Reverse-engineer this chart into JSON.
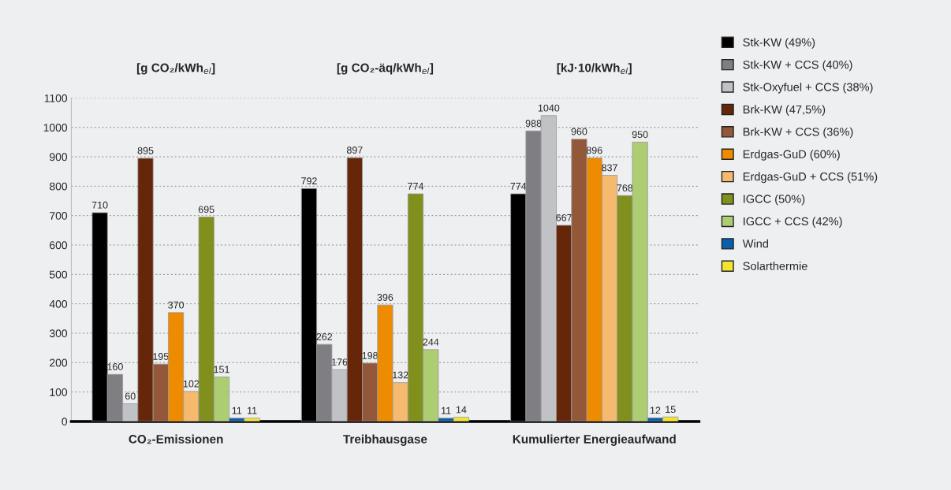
{
  "chart_data": {
    "type": "bar",
    "categories": [
      "CO₂-Emissionen",
      "Treibhausgase",
      "Kumulierter Energieaufwand"
    ],
    "series": [
      {
        "name": "Stk-KW (49%)",
        "color": "#000000",
        "values": [
          710,
          792,
          774
        ]
      },
      {
        "name": "Stk-KW + CCS (40%)",
        "color": "#7f7e83",
        "values": [
          160,
          262,
          988
        ]
      },
      {
        "name": "Stk-Oxyfuel + CCS (38%)",
        "color": "#c1c2c6",
        "values": [
          60,
          176,
          1040
        ]
      },
      {
        "name": "Brk-KW (47,5%)",
        "color": "#66260a",
        "values": [
          895,
          897,
          667
        ]
      },
      {
        "name": "Brk-KW + CCS (36%)",
        "color": "#925839",
        "values": [
          195,
          198,
          960
        ]
      },
      {
        "name": "Erdgas-GuD (60%)",
        "color": "#ef8b00",
        "values": [
          370,
          396,
          896
        ]
      },
      {
        "name": "Erdgas-GuD + CCS (51%)",
        "color": "#f5ba6e",
        "values": [
          102,
          132,
          837
        ]
      },
      {
        "name": "IGCC (50%)",
        "color": "#818f1d",
        "values": [
          695,
          774,
          768
        ]
      },
      {
        "name": "IGCC + CCS (42%)",
        "color": "#adcd73",
        "values": [
          151,
          244,
          950
        ]
      },
      {
        "name": "Wind",
        "color": "#0b5fa8",
        "values": [
          11,
          11,
          12
        ]
      },
      {
        "name": "Solarthermie",
        "color": "#f2e530",
        "values": [
          11,
          14,
          15
        ]
      }
    ],
    "annotations": [
      "[g CO₂/kWh$_{el}$]",
      "[g CO₂-äq/kWh$_{el}$]",
      "[kJ·10/kWh$_{el}$]"
    ],
    "ylim": [
      0,
      1100
    ],
    "yticks": [
      0,
      100,
      200,
      300,
      400,
      500,
      600,
      700,
      800,
      900,
      1000,
      1100
    ],
    "grid": "y",
    "legend": "right",
    "data_labels": true
  }
}
